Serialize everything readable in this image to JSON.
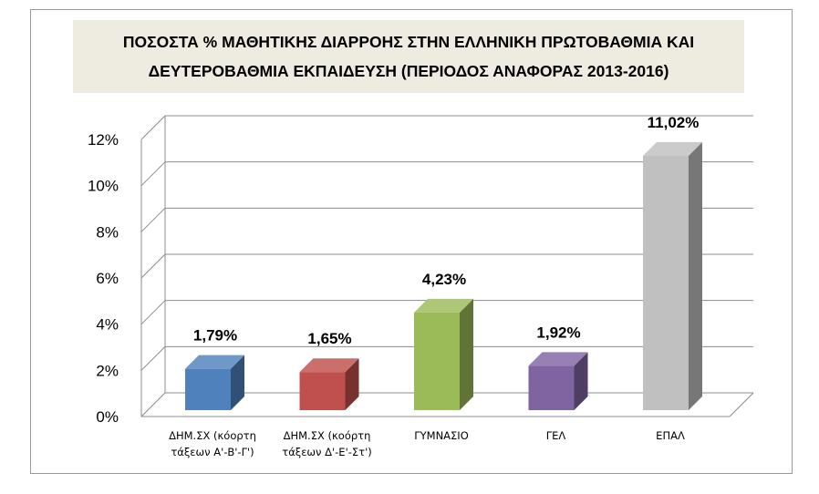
{
  "chart_data": {
    "type": "bar",
    "title_lines": [
      "ΠΟΣΟΣΤΑ % ΜΑΘΗΤΙΚΗΣ ΔΙΑΡΡΟΗΣ ΣΤΗΝ ΕΛΛΗΝΙΚΗ ΠΡΩΤΟΒΑΘΜΙΑ ΚΑΙ",
      "ΔΕΥΤΕΡΟΒΑΘΜΙΑ ΕΚΠΑΙΔΕΥΣΗ (ΠΕΡΙΟΔΟΣ ΑΝΑΦΟΡΑΣ 2013-2016)"
    ],
    "categories": [
      [
        "ΔΗΜ.ΣΧ (κόορτη",
        "τάξεων Α'-Β'-Γ')"
      ],
      [
        "ΔΗΜ.ΣΧ (κοόρτη",
        "τάξεων Δ'-Ε'-Στ')"
      ],
      [
        "ΓΥΜΝΑΣΙΟ"
      ],
      [
        "ΓΕΛ"
      ],
      [
        "ΕΠΑΛ"
      ]
    ],
    "values": [
      1.79,
      1.65,
      4.23,
      1.92,
      11.02
    ],
    "value_labels": [
      "1,79%",
      "1,65%",
      "4,23%",
      "1,92%",
      "11,02%"
    ],
    "colors": [
      "#4f81bd",
      "#c0504d",
      "#9bbb59",
      "#8064a2",
      "#c0c0c0"
    ],
    "y_ticks": [
      "0%",
      "2%",
      "4%",
      "6%",
      "8%",
      "10%",
      "12%"
    ],
    "ylim": [
      0,
      12
    ],
    "grid": true,
    "three_d": true
  }
}
